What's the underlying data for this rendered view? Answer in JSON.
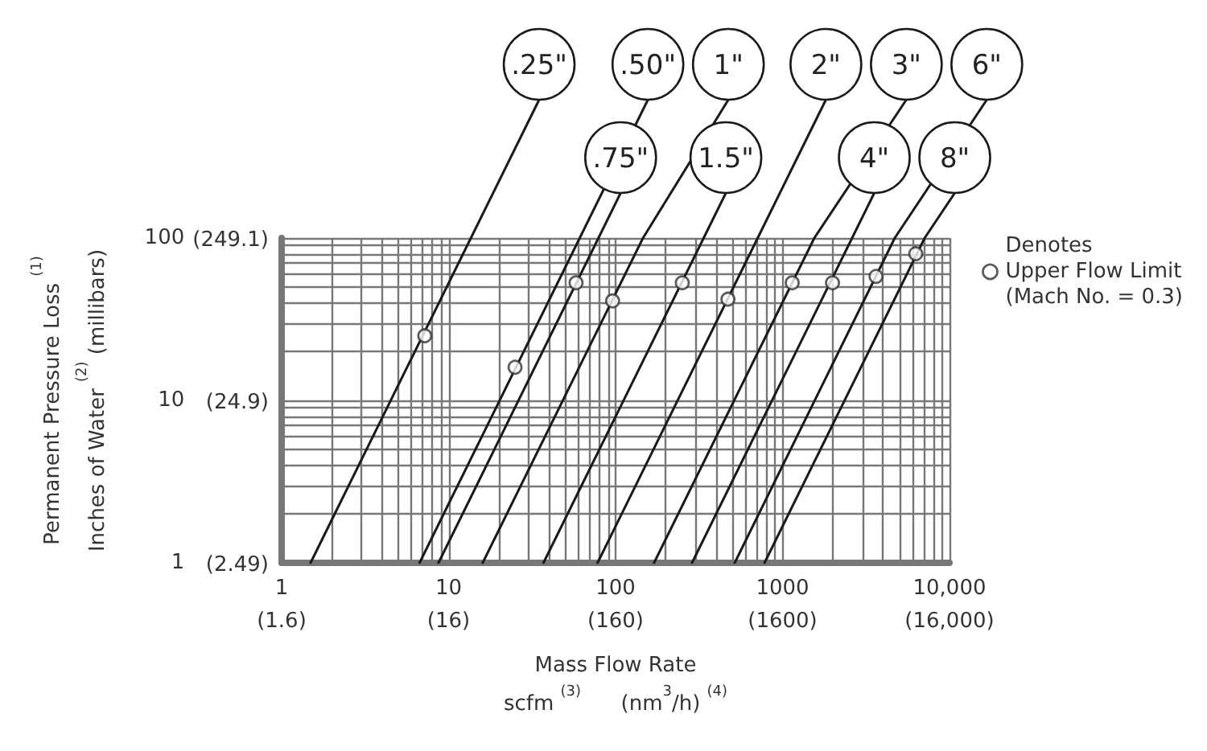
{
  "chart_data": {
    "type": "line",
    "xlabel": "Mass Flow Rate\nscfm $^{(3)}$      (nm$^{3}$/h) $^{(4)}$",
    "ylabel": "Permanent Pressure Loss $^{(1)}$\nInches of Water $^{(2)}$ (millibars)",
    "log": "xy",
    "grid": true,
    "legend": "right",
    "marker": "none",
    "line_style": "solid",
    "xlim": [
      1,
      10000
    ],
    "ylim": [
      1,
      100
    ],
    "annotations": [
      "(1.6)",
      "(16)",
      "(160)",
      "(1600)",
      "(16,000)",
      "(2.49)",
      "(24.9)",
      "(249.1)"
    ],
    "xticks": [
      1,
      {
        "value": 2,
        "label": null
      },
      {
        "value": 3,
        "label": null
      },
      {
        "value": 4,
        "label": null
      },
      {
        "value": 5,
        "label": null
      },
      {
        "value": 6,
        "label": null
      },
      {
        "value": 7,
        "label": null
      },
      {
        "value": 8,
        "label": null
      },
      {
        "value": 9,
        "label": null
      },
      10,
      {
        "value": 20,
        "label": null
      },
      {
        "value": 30,
        "label": null
      },
      {
        "value": 40,
        "label": null
      },
      {
        "value": 50,
        "label": null
      },
      {
        "value": 60,
        "label": null
      },
      {
        "value": 70,
        "label": null
      },
      {
        "value": 80,
        "label": null
      },
      {
        "value": 90,
        "label": null
      },
      100,
      {
        "value": 200,
        "label": null
      },
      {
        "value": 300,
        "label": null
      },
      {
        "value": 400,
        "label": null
      },
      {
        "value": 500,
        "label": null
      },
      {
        "value": 600,
        "label": null
      },
      {
        "value": 700,
        "label": null
      },
      {
        "value": 800,
        "label": null
      },
      {
        "value": 900,
        "label": null
      },
      1000,
      {
        "value": 2000,
        "label": null
      },
      {
        "value": 3000,
        "label": null
      },
      {
        "value": 4000,
        "label": null
      },
      {
        "value": 5000,
        "label": null
      },
      {
        "value": 6000,
        "label": null
      },
      {
        "value": 7000,
        "label": null
      },
      {
        "value": 8000,
        "label": null
      },
      {
        "value": 9000,
        "label": null
      },
      {
        "value": 10000,
        "label": "10,000"
      }
    ],
    "yticks": [
      1,
      {
        "value": 2,
        "label": null
      },
      {
        "value": 3,
        "label": null
      },
      {
        "value": 4,
        "label": null
      },
      {
        "value": 5,
        "label": null
      },
      {
        "value": 6,
        "label": null
      },
      {
        "value": 7,
        "label": null
      },
      {
        "value": 8,
        "label": null
      },
      {
        "value": 9,
        "label": null
      },
      10,
      {
        "value": 20,
        "label": null
      },
      {
        "value": 30,
        "label": null
      },
      {
        "value": 40,
        "label": null
      },
      {
        "value": 50,
        "label": null
      },
      {
        "value": 60,
        "label": null
      },
      {
        "value": 70,
        "label": null
      },
      {
        "value": 80,
        "label": null
      },
      {
        "value": 90,
        "label": null
      },
      100
    ],
    "series": [
      {
        "name": ".25\"",
        "color": "#1a1a1a",
        "x": [
          1.49,
          13.6
        ],
        "values": [
          1,
          100
        ]
      },
      {
        "name": ".50\"",
        "color": "#1a1a1a",
        "x": [
          6.7,
          61
        ],
        "values": [
          1,
          100
        ]
      },
      {
        "name": ".75\"",
        "color": "#1a1a1a",
        "x": [
          8.7,
          79
        ],
        "values": [
          1,
          100
        ]
      },
      {
        "name": "1\"",
        "color": "#1a1a1a",
        "x": [
          16,
          146
        ],
        "values": [
          1,
          100
        ]
      },
      {
        "name": "1.5\"",
        "color": "#1a1a1a",
        "x": [
          37,
          337
        ],
        "values": [
          1,
          100
        ]
      },
      {
        "name": "2\"",
        "color": "#1a1a1a",
        "x": [
          78,
          710
        ],
        "values": [
          1,
          100
        ]
      },
      {
        "name": "3\"",
        "color": "#1a1a1a",
        "x": [
          170,
          1550
        ],
        "values": [
          1,
          100
        ]
      },
      {
        "name": "4\"",
        "color": "#1a1a1a",
        "x": [
          287,
          2610
        ],
        "values": [
          1,
          100
        ]
      },
      {
        "name": "6\"",
        "color": "#1a1a1a",
        "x": [
          517,
          4700
        ],
        "values": [
          1,
          100
        ]
      },
      {
        "name": "8\"",
        "color": "#1a1a1a",
        "x": [
          780,
          7100
        ],
        "values": [
          1,
          100
        ]
      },
      {
        "name": "Denotes\nUpper Flow Limit\n(Mach No. = 0.3)",
        "type": "scatter",
        "marker": "circle",
        "color": "#333333",
        "x": [
          7.2,
          25,
          58,
          96,
          251,
          471,
          1143,
          1992,
          3630,
          6280
        ],
        "values": [
          25,
          16,
          53,
          41,
          53,
          42,
          53,
          53,
          58,
          80
        ]
      }
    ]
  }
}
